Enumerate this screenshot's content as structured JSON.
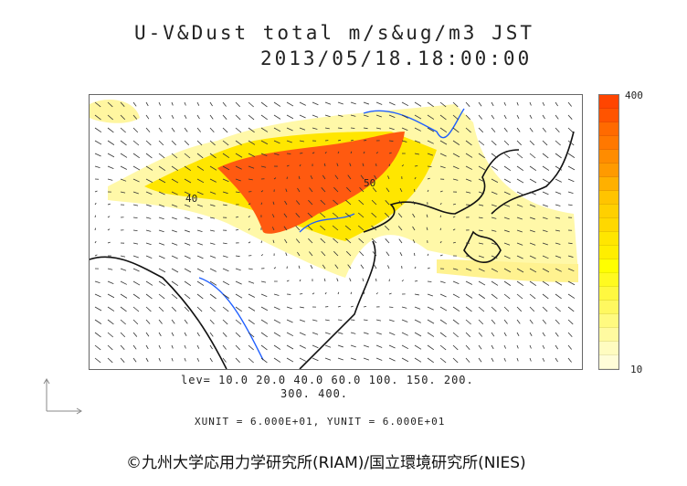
{
  "title": {
    "line1": "U-V&Dust total m/s&ug/m3 JST",
    "line2": "2013/05/18.18:00:00"
  },
  "colorbar": {
    "max_label": "400",
    "min_label": "10",
    "colors": [
      "#ff4500",
      "#ff5400",
      "#ff6a00",
      "#ff7800",
      "#ff8c00",
      "#ff9a00",
      "#ffb000",
      "#ffc400",
      "#ffd000",
      "#ffd800",
      "#ffe600",
      "#ffee00",
      "#ffff00",
      "#fffa20",
      "#fff840",
      "#fff860",
      "#fffa80",
      "#fffaa0",
      "#fffcc0",
      "#fffdd8"
    ]
  },
  "contour_levels": {
    "line1": "lev= 10.0 20.0 40.0 60.0 100. 150. 200.",
    "line2": "300. 400."
  },
  "contour_labels": [
    "40",
    "50"
  ],
  "units": "XUNIT = 6.000E+01, YUNIT = 6.000E+01",
  "copyright": "©九州大学応用力学研究所(RIAM)/国立環境研究所(NIES)"
}
